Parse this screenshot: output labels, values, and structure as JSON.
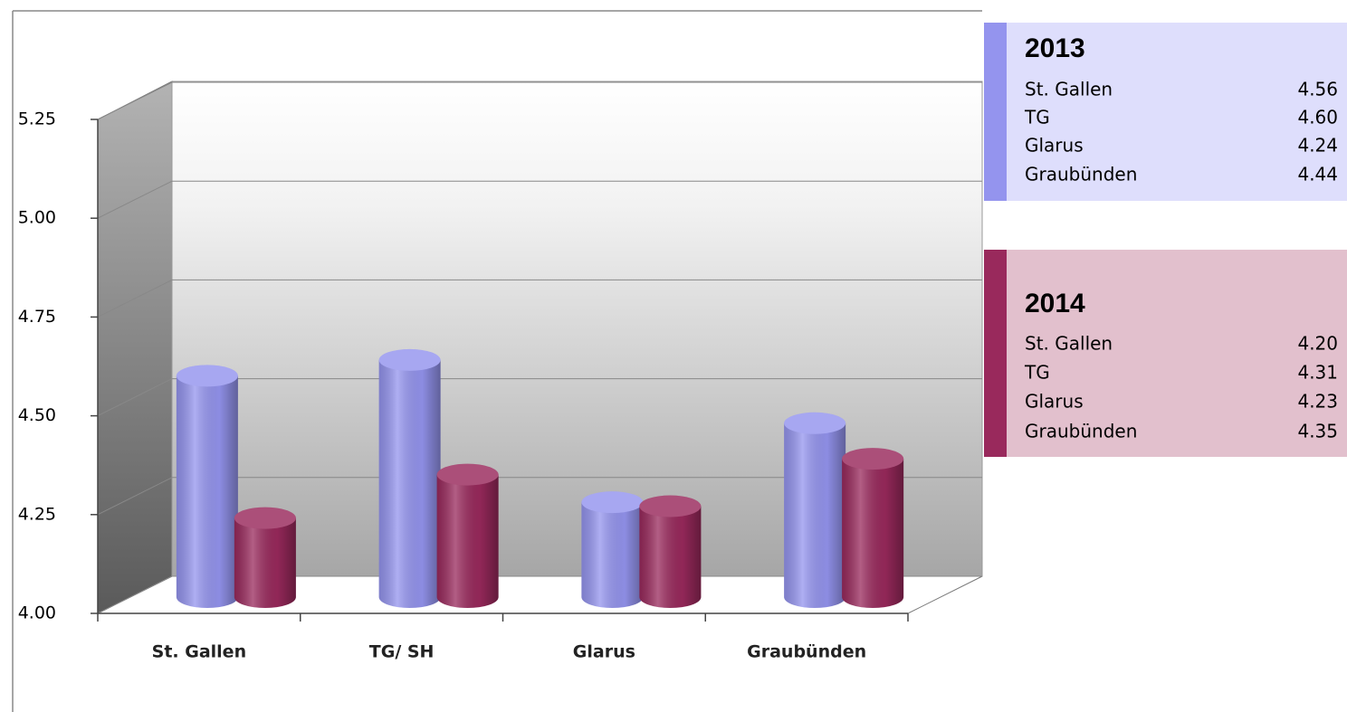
{
  "chart_data": {
    "type": "bar3d",
    "categories": [
      "St. Gallen",
      "TG/ SH",
      "Glarus",
      "Graubünden"
    ],
    "legend_categories": [
      "St. Gallen",
      "TG",
      "Glarus",
      "Graubünden"
    ],
    "series": [
      {
        "name": "2013",
        "color": "#9494ee",
        "values": [
          4.56,
          4.6,
          4.24,
          4.44
        ],
        "value_labels": [
          "4.56",
          "4.60",
          "4.24",
          "4.44"
        ]
      },
      {
        "name": "2014",
        "color": "#99295c",
        "values": [
          4.2,
          4.31,
          4.23,
          4.35
        ],
        "value_labels": [
          "4.20",
          "4.31",
          "4.23",
          "4.35"
        ]
      }
    ],
    "ylim": [
      4,
      5.25
    ],
    "yticks": [
      {
        "value": 4,
        "label": "4.00"
      },
      4.25,
      {
        "value": 4.5,
        "label": "4.50"
      },
      4.75,
      {
        "value": 5,
        "label": "5.00"
      },
      5.25
    ],
    "grid": true
  }
}
